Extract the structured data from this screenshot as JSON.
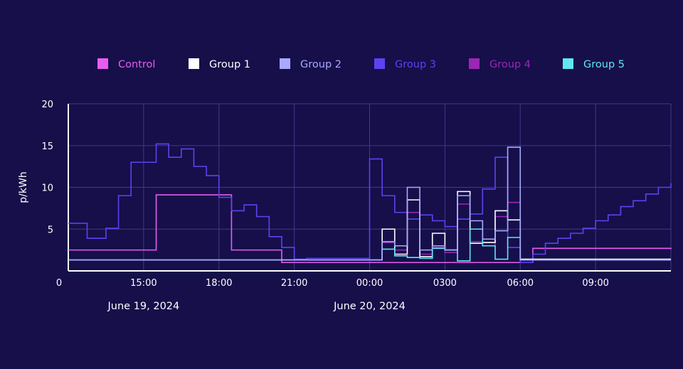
{
  "chart_data": {
    "type": "line",
    "step": true,
    "title": "",
    "xlabel": "",
    "ylabel": "p/kWh",
    "ylim": [
      0,
      20
    ],
    "y_ticks": [
      5,
      10,
      15,
      20
    ],
    "x_axis": {
      "unit": "hours from 12:00, June 19, 2024",
      "range": [
        12,
        36
      ],
      "ticks": [
        {
          "x": 12,
          "label": "0"
        },
        {
          "x": 15,
          "label": "15:00"
        },
        {
          "x": 18,
          "label": "18:00"
        },
        {
          "x": 21,
          "label": "21:00"
        },
        {
          "x": 24,
          "label": "00:00"
        },
        {
          "x": 27,
          "label": "0300"
        },
        {
          "x": 30,
          "label": "06:00"
        },
        {
          "x": 33,
          "label": "09:00"
        }
      ],
      "date_labels": [
        {
          "x": 15,
          "label": "June 19, 2024"
        },
        {
          "x": 24,
          "label": "June 20, 2024"
        }
      ]
    },
    "grid": true,
    "legend_position": "top",
    "series": [
      {
        "name": "Control",
        "color": "#e75cf0",
        "x": [
          12,
          15.5,
          18.5,
          20.5,
          24,
          30.5,
          36
        ],
        "y": [
          2.5,
          9.1,
          2.5,
          1.0,
          1.0,
          2.7,
          2.6
        ]
      },
      {
        "name": "Group 1",
        "color": "#ffffff",
        "x": [
          12,
          24,
          24.5,
          25,
          25.5,
          26,
          26.5,
          27,
          27.5,
          28,
          28.5,
          29,
          29.5,
          30,
          30.5,
          36
        ],
        "y": [
          1.3,
          1.3,
          5.0,
          2.0,
          8.5,
          1.7,
          4.5,
          2.5,
          9.5,
          3.3,
          3.4,
          7.2,
          6.1,
          1.4,
          1.4,
          1.4
        ]
      },
      {
        "name": "Group 2",
        "color": "#a8aaff",
        "x": [
          12,
          24,
          24.5,
          25,
          25.5,
          26,
          26.5,
          27,
          27.5,
          28,
          28.5,
          29,
          29.5,
          30,
          30.5,
          36
        ],
        "y": [
          1.3,
          1.3,
          3.5,
          3.0,
          10.0,
          2.5,
          3.0,
          2.5,
          9.0,
          6.0,
          3.8,
          4.8,
          14.8,
          1.3,
          1.3,
          1.3
        ]
      },
      {
        "name": "Group 3",
        "color": "#5b43f0",
        "x": [
          12,
          12.75,
          13.5,
          14.0,
          14.5,
          15.5,
          16.0,
          16.5,
          17.0,
          17.5,
          18.0,
          18.5,
          19.0,
          19.5,
          20.0,
          20.5,
          21.0,
          21.5,
          24,
          24.5,
          25,
          25.5,
          26,
          26.5,
          27,
          27.5,
          28,
          28.5,
          29,
          29.5,
          30,
          30.5,
          31,
          31.5,
          32,
          32.5,
          33,
          33.5,
          34,
          34.5,
          35,
          35.5,
          36
        ],
        "y": [
          5.7,
          3.9,
          5.1,
          9.0,
          13.0,
          15.2,
          13.6,
          14.6,
          12.5,
          11.4,
          8.8,
          7.2,
          7.9,
          6.5,
          4.1,
          2.8,
          1.4,
          1.5,
          13.4,
          9.0,
          7.0,
          6.2,
          6.7,
          6.0,
          5.3,
          6.2,
          6.8,
          9.8,
          13.6,
          2.8,
          1.0,
          2.0,
          3.3,
          3.9,
          4.5,
          5.1,
          6.0,
          6.7,
          7.7,
          8.4,
          9.2,
          10.0,
          10.5
        ]
      },
      {
        "name": "Group 4",
        "color": "#9b27b5",
        "x": [
          12,
          24,
          24.5,
          25,
          25.5,
          26,
          26.5,
          27,
          27.5,
          28,
          28.5,
          29,
          29.5,
          30,
          36
        ],
        "y": [
          1.3,
          1.3,
          3.4,
          2.5,
          7.0,
          2.0,
          2.8,
          2.2,
          8.0,
          3.5,
          3.0,
          6.5,
          8.2,
          1.3,
          1.3
        ]
      },
      {
        "name": "Group 5",
        "color": "#5fe6f5",
        "x": [
          12,
          24,
          24.5,
          25,
          25.5,
          26,
          26.5,
          27,
          27.5,
          28,
          28.5,
          29,
          29.5,
          30,
          36
        ],
        "y": [
          1.3,
          1.3,
          2.6,
          1.8,
          1.6,
          1.5,
          2.7,
          2.5,
          1.2,
          5.0,
          3.0,
          1.4,
          4.0,
          1.3,
          1.3
        ]
      }
    ]
  }
}
